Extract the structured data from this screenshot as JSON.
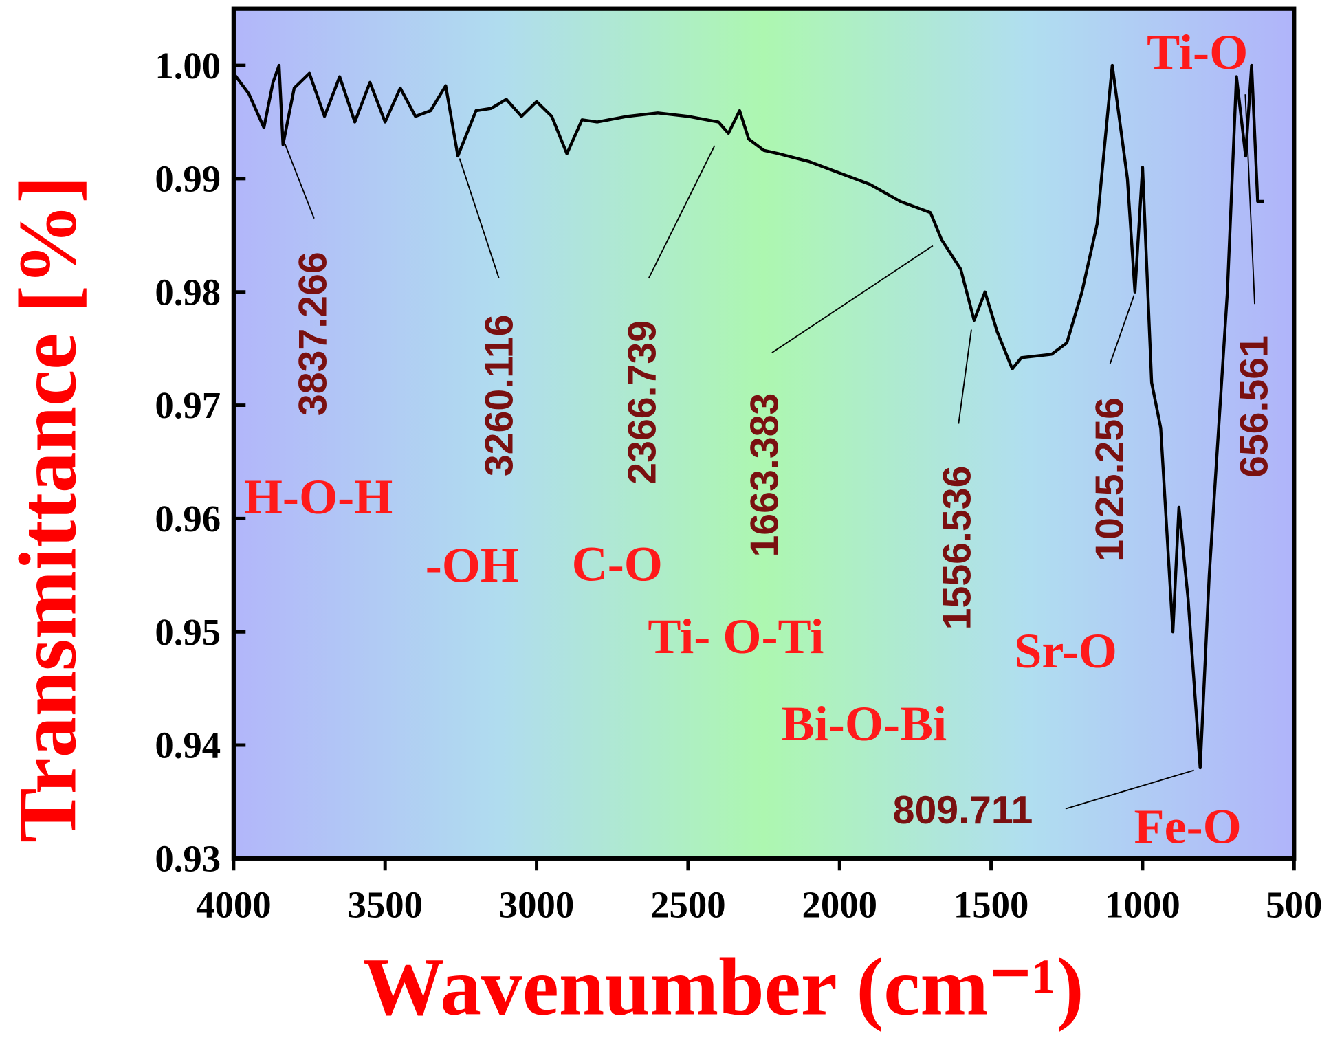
{
  "chart_data": {
    "type": "line",
    "xlabel": "Wavenumber (cm⁻¹)",
    "ylabel": "Transmittance [%]",
    "color": "#000000",
    "xlim": [
      4000,
      500
    ],
    "ylim": [
      0.93,
      1.005
    ],
    "xticks": [
      4000,
      3500,
      3000,
      2500,
      2000,
      1500,
      1000,
      500
    ],
    "yticks": [
      {
        "value": 1.0,
        "label": "1.00"
      },
      0.99,
      0.98,
      0.97,
      0.96,
      0.95,
      0.94,
      0.93
    ],
    "x": [
      4000,
      3950,
      3900,
      3870,
      3850,
      3837,
      3800,
      3750,
      3700,
      3650,
      3600,
      3550,
      3500,
      3450,
      3400,
      3350,
      3300,
      3260,
      3200,
      3150,
      3100,
      3050,
      3000,
      2950,
      2900,
      2850,
      2800,
      2700,
      2600,
      2500,
      2400,
      2367,
      2330,
      2300,
      2250,
      2200,
      2100,
      2000,
      1900,
      1800,
      1750,
      1700,
      1663,
      1600,
      1556,
      1520,
      1480,
      1430,
      1400,
      1300,
      1250,
      1200,
      1150,
      1100,
      1050,
      1025,
      1000,
      970,
      940,
      900,
      880,
      850,
      810,
      780,
      720,
      690,
      660,
      640,
      620,
      600
    ],
    "values": [
      0.9993,
      0.9975,
      0.9945,
      0.9985,
      1.0,
      0.993,
      0.998,
      0.9993,
      0.9955,
      0.999,
      0.995,
      0.9985,
      0.995,
      0.998,
      0.9955,
      0.996,
      0.9982,
      0.992,
      0.996,
      0.9962,
      0.997,
      0.9955,
      0.9968,
      0.9955,
      0.9922,
      0.9952,
      0.995,
      0.9955,
      0.9958,
      0.9955,
      0.995,
      0.994,
      0.996,
      0.9935,
      0.9925,
      0.9922,
      0.9915,
      0.9905,
      0.9895,
      0.988,
      0.9875,
      0.987,
      0.9846,
      0.982,
      0.9775,
      0.98,
      0.9765,
      0.9732,
      0.9742,
      0.9745,
      0.9755,
      0.98,
      0.986,
      1.0,
      0.99,
      0.98,
      0.991,
      0.972,
      0.968,
      0.95,
      0.961,
      0.953,
      0.938,
      0.955,
      0.98,
      0.999,
      0.992,
      1.0,
      0.988,
      0.988
    ],
    "peak_labels": [
      "3837.266",
      "3260.116",
      "2366.739",
      "1663.383",
      "1556.536",
      "1025.256",
      "656.561",
      "809.711"
    ],
    "band_labels": [
      "H-O-H",
      "-OH",
      "C-O",
      "Ti- O-Ti",
      "Bi-O-Bi",
      "Sr-O",
      "Ti-O",
      "Fe-O"
    ]
  }
}
